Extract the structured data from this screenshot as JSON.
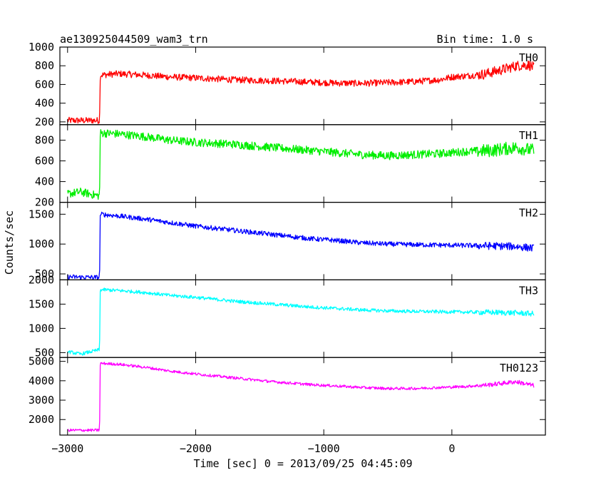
{
  "chart_data": {
    "type": "line",
    "title": "ae130925044509_wam3_trn",
    "subtitle": "Bin time: 1.0 s",
    "xlabel": "Time [sec] 0 = 2013/09/25 04:45:09",
    "ylabel": "Counts/sec",
    "xlim": [
      -3060,
      730
    ],
    "x_ticks": [
      -3000,
      -2000,
      -1000,
      0
    ],
    "x_tick_labels": [
      "−3000",
      "−2000",
      "−1000",
      "0"
    ],
    "grid": false,
    "legend": "none",
    "series": [
      {
        "name": "TH0",
        "color": "#ff0000",
        "ylim": [
          170,
          1000
        ],
        "yticks": [
          200,
          400,
          600,
          800,
          1000
        ],
        "noise": 35,
        "points": [
          [
            -3000,
            215
          ],
          [
            -2750,
            215
          ],
          [
            -2745,
            700
          ],
          [
            -2600,
            715
          ],
          [
            -2400,
            700
          ],
          [
            -2200,
            680
          ],
          [
            -2000,
            670
          ],
          [
            -1700,
            650
          ],
          [
            -1400,
            640
          ],
          [
            -1100,
            625
          ],
          [
            -900,
            615
          ],
          [
            -700,
            612
          ],
          [
            -500,
            620
          ],
          [
            -300,
            630
          ],
          [
            -100,
            650
          ],
          [
            0,
            680
          ],
          [
            100,
            690
          ],
          [
            250,
            710
          ],
          [
            400,
            760
          ],
          [
            500,
            800
          ],
          [
            600,
            810
          ],
          [
            640,
            780
          ]
        ]
      },
      {
        "name": "TH1",
        "color": "#00ee00",
        "ylim": [
          200,
          950
        ],
        "yticks": [
          200,
          400,
          600,
          800
        ],
        "noise": 40,
        "points": [
          [
            -3000,
            280
          ],
          [
            -2900,
            300
          ],
          [
            -2750,
            260
          ],
          [
            -2745,
            870
          ],
          [
            -2600,
            860
          ],
          [
            -2400,
            835
          ],
          [
            -2200,
            800
          ],
          [
            -2000,
            780
          ],
          [
            -1700,
            760
          ],
          [
            -1400,
            730
          ],
          [
            -1100,
            700
          ],
          [
            -900,
            680
          ],
          [
            -700,
            660
          ],
          [
            -500,
            650
          ],
          [
            -300,
            660
          ],
          [
            -100,
            670
          ],
          [
            100,
            690
          ],
          [
            300,
            700
          ],
          [
            500,
            730
          ],
          [
            640,
            700
          ]
        ]
      },
      {
        "name": "TH2",
        "color": "#0000ff",
        "ylim": [
          400,
          1700
        ],
        "yticks": [
          500,
          1000,
          1500
        ],
        "noise": 40,
        "points": [
          [
            -3000,
            450
          ],
          [
            -2750,
            440
          ],
          [
            -2745,
            1500
          ],
          [
            -2600,
            1470
          ],
          [
            -2400,
            1420
          ],
          [
            -2200,
            1360
          ],
          [
            -2000,
            1300
          ],
          [
            -1700,
            1230
          ],
          [
            -1400,
            1160
          ],
          [
            -1100,
            1090
          ],
          [
            -900,
            1060
          ],
          [
            -700,
            1020
          ],
          [
            -500,
            1000
          ],
          [
            -300,
            990
          ],
          [
            0,
            980
          ],
          [
            300,
            970
          ],
          [
            500,
            960
          ],
          [
            640,
            930
          ]
        ]
      },
      {
        "name": "TH3",
        "color": "#00ffff",
        "ylim": [
          400,
          2000
        ],
        "yticks": [
          500,
          1000,
          1500,
          2000
        ],
        "noise": 35,
        "points": [
          [
            -3000,
            520
          ],
          [
            -2900,
            470
          ],
          [
            -2750,
            560
          ],
          [
            -2745,
            1800
          ],
          [
            -2600,
            1780
          ],
          [
            -2400,
            1740
          ],
          [
            -2200,
            1680
          ],
          [
            -2000,
            1640
          ],
          [
            -1700,
            1560
          ],
          [
            -1400,
            1500
          ],
          [
            -1100,
            1440
          ],
          [
            -900,
            1410
          ],
          [
            -700,
            1380
          ],
          [
            -500,
            1360
          ],
          [
            -300,
            1350
          ],
          [
            0,
            1340
          ],
          [
            300,
            1330
          ],
          [
            500,
            1320
          ],
          [
            640,
            1300
          ]
        ]
      },
      {
        "name": "TH0123",
        "color": "#ff00ff",
        "ylim": [
          1200,
          5200
        ],
        "yticks": [
          2000,
          3000,
          4000,
          5000
        ],
        "noise": 70,
        "points": [
          [
            -3000,
            1450
          ],
          [
            -2750,
            1450
          ],
          [
            -2745,
            4900
          ],
          [
            -2600,
            4850
          ],
          [
            -2400,
            4700
          ],
          [
            -2200,
            4500
          ],
          [
            -2000,
            4350
          ],
          [
            -1700,
            4150
          ],
          [
            -1400,
            3950
          ],
          [
            -1100,
            3800
          ],
          [
            -900,
            3730
          ],
          [
            -700,
            3650
          ],
          [
            -500,
            3600
          ],
          [
            -300,
            3600
          ],
          [
            -100,
            3650
          ],
          [
            100,
            3700
          ],
          [
            300,
            3800
          ],
          [
            500,
            3950
          ],
          [
            640,
            3750
          ]
        ]
      }
    ]
  }
}
